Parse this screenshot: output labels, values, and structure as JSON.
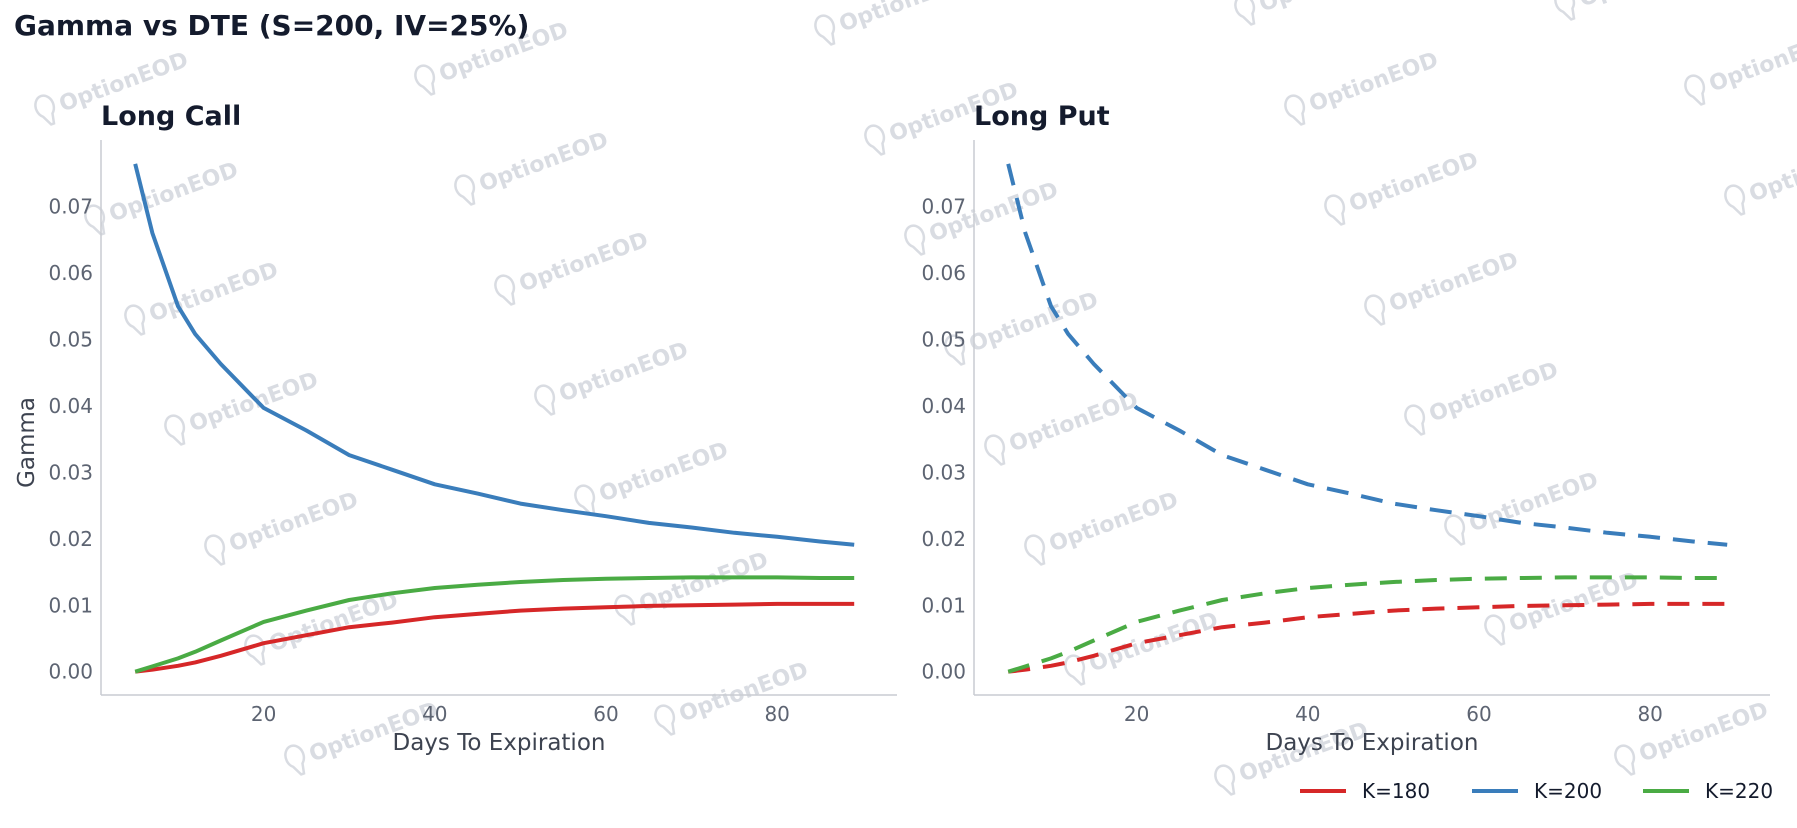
{
  "figure": {
    "title": "Gamma vs DTE (S=200, IV=25%)",
    "watermark": "OptionEOD",
    "colors": {
      "K=180": "#d62728",
      "K=200": "#3a7dbb",
      "K=220": "#4aab44"
    }
  },
  "legend": {
    "placement": "bottom-right",
    "entries": [
      "K=180",
      "K=200",
      "K=220"
    ]
  },
  "chart_data": [
    {
      "type": "line",
      "title": "Long Call",
      "xlabel": "Days To Expiration",
      "ylabel": "Gamma",
      "xlim": [
        1,
        94
      ],
      "ylim": [
        -0.0035,
        0.08
      ],
      "xticks": [
        20,
        40,
        60,
        80
      ],
      "yticks": [
        0.0,
        0.01,
        0.02,
        0.03,
        0.04,
        0.05,
        0.06,
        0.07
      ],
      "ytick_labels": [
        "0.00",
        "0.01",
        "0.02",
        "0.03",
        "0.04",
        "0.05",
        "0.06",
        "0.07"
      ],
      "grid": false,
      "line_style": "solid",
      "x": [
        5,
        7,
        10,
        12,
        15,
        20,
        25,
        30,
        35,
        40,
        45,
        50,
        55,
        60,
        65,
        70,
        75,
        80,
        85,
        89
      ],
      "series": [
        {
          "name": "K=180",
          "color": "#d62728",
          "values": [
            0.0,
            0.0003,
            0.0009,
            0.0014,
            0.0024,
            0.0043,
            0.0055,
            0.0067,
            0.0074,
            0.0082,
            0.0087,
            0.0092,
            0.0095,
            0.0097,
            0.0099,
            0.01,
            0.0101,
            0.0102,
            0.0102,
            0.0102
          ]
        },
        {
          "name": "K=200",
          "color": "#3a7dbb",
          "values": [
            0.0764,
            0.066,
            0.055,
            0.0508,
            0.0463,
            0.0397,
            0.0363,
            0.0326,
            0.0304,
            0.0282,
            0.0268,
            0.0253,
            0.0243,
            0.0234,
            0.0224,
            0.0217,
            0.0209,
            0.0203,
            0.0196,
            0.0191
          ]
        },
        {
          "name": "K=220",
          "color": "#4aab44",
          "values": [
            0.0,
            0.0008,
            0.002,
            0.003,
            0.0047,
            0.0075,
            0.0092,
            0.0108,
            0.0118,
            0.0126,
            0.0131,
            0.0135,
            0.0138,
            0.014,
            0.0141,
            0.0142,
            0.0142,
            0.0142,
            0.0141,
            0.0141
          ]
        }
      ]
    },
    {
      "type": "line",
      "title": "Long Put",
      "xlabel": "Days To Expiration",
      "ylabel": "",
      "xlim": [
        1,
        94
      ],
      "ylim": [
        -0.0035,
        0.08
      ],
      "xticks": [
        20,
        40,
        60,
        80
      ],
      "yticks": [
        0.0,
        0.01,
        0.02,
        0.03,
        0.04,
        0.05,
        0.06,
        0.07
      ],
      "ytick_labels": [
        "0.00",
        "0.01",
        "0.02",
        "0.03",
        "0.04",
        "0.05",
        "0.06",
        "0.07"
      ],
      "grid": false,
      "line_style": "dashed",
      "x": [
        5,
        7,
        10,
        12,
        15,
        20,
        25,
        30,
        35,
        40,
        45,
        50,
        55,
        60,
        65,
        70,
        75,
        80,
        85,
        89
      ],
      "series": [
        {
          "name": "K=180",
          "color": "#d62728",
          "values": [
            0.0,
            0.0003,
            0.0009,
            0.0014,
            0.0024,
            0.0043,
            0.0055,
            0.0067,
            0.0074,
            0.0082,
            0.0087,
            0.0092,
            0.0095,
            0.0097,
            0.0099,
            0.01,
            0.0101,
            0.0102,
            0.0102,
            0.0102
          ]
        },
        {
          "name": "K=200",
          "color": "#3a7dbb",
          "values": [
            0.0764,
            0.066,
            0.055,
            0.0508,
            0.0463,
            0.0397,
            0.0363,
            0.0326,
            0.0304,
            0.0282,
            0.0268,
            0.0253,
            0.0243,
            0.0234,
            0.0224,
            0.0217,
            0.0209,
            0.0203,
            0.0196,
            0.0191
          ]
        },
        {
          "name": "K=220",
          "color": "#4aab44",
          "values": [
            0.0,
            0.0008,
            0.002,
            0.003,
            0.0047,
            0.0075,
            0.0092,
            0.0108,
            0.0118,
            0.0126,
            0.0131,
            0.0135,
            0.0138,
            0.014,
            0.0141,
            0.0142,
            0.0142,
            0.0142,
            0.0141,
            0.0141
          ]
        }
      ]
    }
  ]
}
